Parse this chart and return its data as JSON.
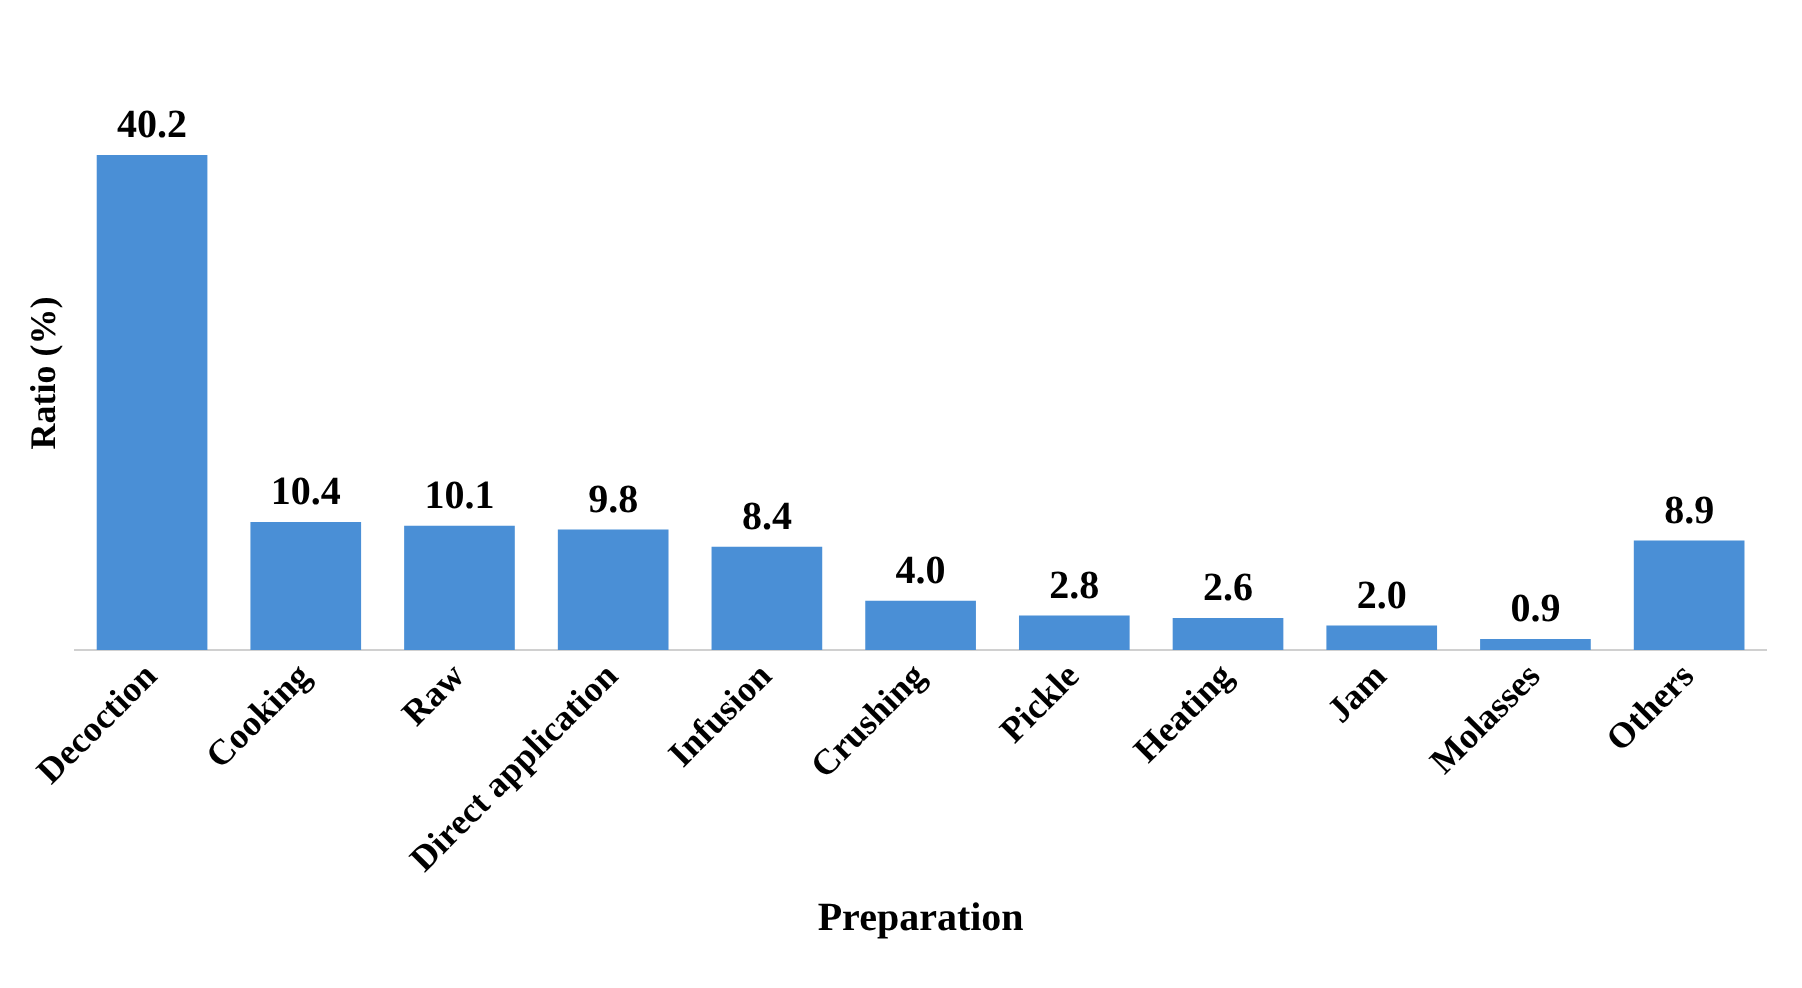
{
  "chart_data": {
    "type": "bar",
    "xlabel": "Preparation",
    "ylabel": "Ratio (%)",
    "categories": [
      "Decoction",
      "Cooking",
      "Raw",
      "Direct application",
      "Infusion",
      "Crushing",
      "Pickle",
      "Heating",
      "Jam",
      "Molasses",
      "Others"
    ],
    "values": [
      40.2,
      10.4,
      10.1,
      9.8,
      8.4,
      4.0,
      2.8,
      2.6,
      2.0,
      0.9,
      8.9
    ],
    "value_labels": [
      "40.2",
      "10.4",
      "10.1",
      "9.8",
      "8.4",
      "4.0",
      "2.8",
      "2.6",
      "2.0",
      "0.9",
      "8.9"
    ],
    "color": "#4a8fd6",
    "grid": false,
    "legend": false
  }
}
